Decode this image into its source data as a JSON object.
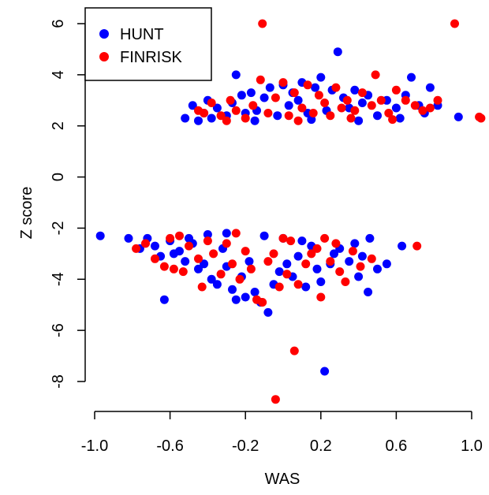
{
  "chart_data": {
    "type": "scatter",
    "title": "",
    "xlabel": "WAS",
    "ylabel": "Z score",
    "xlim": [
      -1.0,
      1.0
    ],
    "ylim": [
      -9,
      6.5
    ],
    "x_ticks": [
      -1.0,
      -0.6,
      -0.2,
      0.2,
      0.6,
      1.0
    ],
    "x_tick_labels": [
      "-1.0",
      "-0.6",
      "-0.2",
      "0.2",
      "0.6",
      "1.0"
    ],
    "y_ticks": [
      -8,
      -6,
      -4,
      -2,
      0,
      2,
      4,
      6
    ],
    "y_tick_labels": [
      "-8",
      "-6",
      "-4",
      "-2",
      "0",
      "2",
      "4",
      "6"
    ],
    "legend_position": "top-left",
    "grid": false,
    "series": [
      {
        "name": "HUNT",
        "color": "#0000ff",
        "points": [
          [
            -0.97,
            -2.3
          ],
          [
            -0.82,
            -2.4
          ],
          [
            -0.76,
            -2.8
          ],
          [
            -0.72,
            -2.4
          ],
          [
            -0.68,
            -2.7
          ],
          [
            -0.63,
            -4.8
          ],
          [
            -0.6,
            -2.5
          ],
          [
            -0.58,
            -3.0
          ],
          [
            -0.55,
            -2.9
          ],
          [
            -0.52,
            -3.3
          ],
          [
            -0.5,
            -2.4
          ],
          [
            -0.48,
            -2.6
          ],
          [
            -0.45,
            -3.6
          ],
          [
            -0.42,
            -3.4
          ],
          [
            -0.38,
            -4.0
          ],
          [
            -0.35,
            -4.2
          ],
          [
            -0.32,
            -2.8
          ],
          [
            -0.3,
            -3.5
          ],
          [
            -0.27,
            -4.4
          ],
          [
            -0.25,
            -4.8
          ],
          [
            -0.22,
            -3.9
          ],
          [
            -0.2,
            -4.7
          ],
          [
            -0.18,
            -3.3
          ],
          [
            -0.15,
            -4.5
          ],
          [
            -0.12,
            -4.9
          ],
          [
            -0.08,
            -5.3
          ],
          [
            -0.05,
            -4.2
          ],
          [
            -0.02,
            -3.7
          ],
          [
            0.02,
            -3.4
          ],
          [
            0.05,
            -3.9
          ],
          [
            0.08,
            -3.1
          ],
          [
            0.12,
            -4.3
          ],
          [
            0.15,
            -2.7
          ],
          [
            0.18,
            -3.6
          ],
          [
            0.2,
            -4.1
          ],
          [
            0.22,
            -7.6
          ],
          [
            0.25,
            -3.4
          ],
          [
            0.3,
            -2.8
          ],
          [
            0.35,
            -3.3
          ],
          [
            0.4,
            -3.9
          ],
          [
            0.42,
            -3.1
          ],
          [
            0.45,
            -4.5
          ],
          [
            0.5,
            -3.6
          ],
          [
            0.55,
            -3.4
          ],
          [
            0.63,
            -2.7
          ],
          [
            0.46,
            -2.4
          ],
          [
            -0.4,
            -2.25
          ],
          [
            -0.1,
            -2.3
          ],
          [
            0.1,
            -2.5
          ],
          [
            0.38,
            -2.6
          ],
          [
            -0.65,
            -3.1
          ],
          [
            -0.3,
            -2.2
          ],
          [
            0.0,
            -2.4
          ],
          [
            0.27,
            -3.0
          ],
          [
            -0.52,
            2.3
          ],
          [
            -0.48,
            2.8
          ],
          [
            -0.42,
            2.5
          ],
          [
            -0.4,
            3.0
          ],
          [
            -0.38,
            2.3
          ],
          [
            -0.35,
            2.7
          ],
          [
            -0.3,
            2.4
          ],
          [
            -0.27,
            2.9
          ],
          [
            -0.25,
            4.0
          ],
          [
            -0.22,
            3.2
          ],
          [
            -0.2,
            2.5
          ],
          [
            -0.17,
            3.3
          ],
          [
            -0.14,
            2.6
          ],
          [
            -0.1,
            3.1
          ],
          [
            -0.07,
            3.5
          ],
          [
            -0.03,
            2.4
          ],
          [
            0.0,
            3.6
          ],
          [
            0.03,
            2.8
          ],
          [
            0.05,
            3.3
          ],
          [
            0.08,
            3.0
          ],
          [
            0.1,
            3.7
          ],
          [
            0.13,
            2.5
          ],
          [
            0.17,
            3.5
          ],
          [
            0.2,
            3.9
          ],
          [
            0.23,
            2.6
          ],
          [
            0.26,
            3.4
          ],
          [
            0.29,
            4.9
          ],
          [
            0.32,
            3.1
          ],
          [
            0.35,
            2.7
          ],
          [
            0.38,
            3.4
          ],
          [
            0.42,
            2.9
          ],
          [
            0.45,
            3.2
          ],
          [
            0.5,
            2.4
          ],
          [
            0.55,
            3.0
          ],
          [
            0.6,
            2.7
          ],
          [
            0.65,
            3.2
          ],
          [
            0.68,
            3.9
          ],
          [
            0.72,
            2.8
          ],
          [
            0.75,
            2.5
          ],
          [
            0.78,
            3.5
          ],
          [
            0.82,
            2.8
          ],
          [
            0.93,
            2.35
          ],
          [
            -0.45,
            2.2
          ],
          [
            -0.15,
            2.2
          ],
          [
            0.15,
            2.25
          ],
          [
            0.4,
            2.2
          ],
          [
            0.62,
            2.3
          ]
        ]
      },
      {
        "name": "FINRISK",
        "color": "#ff0000",
        "points": [
          [
            -0.78,
            -2.8
          ],
          [
            -0.73,
            -2.6
          ],
          [
            -0.68,
            -3.2
          ],
          [
            -0.63,
            -3.5
          ],
          [
            -0.6,
            -2.4
          ],
          [
            -0.58,
            -3.6
          ],
          [
            -0.53,
            -3.7
          ],
          [
            -0.5,
            -2.7
          ],
          [
            -0.45,
            -3.2
          ],
          [
            -0.43,
            -4.3
          ],
          [
            -0.4,
            -2.5
          ],
          [
            -0.37,
            -3.0
          ],
          [
            -0.33,
            -3.8
          ],
          [
            -0.3,
            -2.6
          ],
          [
            -0.27,
            -3.4
          ],
          [
            -0.23,
            -4.0
          ],
          [
            -0.2,
            -2.9
          ],
          [
            -0.17,
            -3.6
          ],
          [
            -0.14,
            -4.8
          ],
          [
            -0.11,
            -4.9
          ],
          [
            -0.08,
            -3.3
          ],
          [
            -0.04,
            -8.7
          ],
          [
            -0.02,
            -4.3
          ],
          [
            0.02,
            -3.8
          ],
          [
            0.04,
            -2.5
          ],
          [
            0.06,
            -6.8
          ],
          [
            0.08,
            -4.2
          ],
          [
            0.12,
            -3.4
          ],
          [
            0.15,
            -3.0
          ],
          [
            0.18,
            -2.8
          ],
          [
            0.2,
            -4.7
          ],
          [
            0.25,
            -3.3
          ],
          [
            0.28,
            -2.6
          ],
          [
            0.33,
            -4.1
          ],
          [
            0.37,
            -2.9
          ],
          [
            0.41,
            -3.5
          ],
          [
            0.47,
            -3.2
          ],
          [
            0.71,
            -2.7
          ],
          [
            -0.25,
            -2.2
          ],
          [
            0.0,
            -2.4
          ],
          [
            0.3,
            -3.7
          ],
          [
            -0.55,
            -2.3
          ],
          [
            -0.05,
            -3.0
          ],
          [
            0.22,
            -2.4
          ],
          [
            -0.45,
            2.6
          ],
          [
            -0.42,
            2.5
          ],
          [
            -0.38,
            2.9
          ],
          [
            -0.33,
            2.4
          ],
          [
            -0.28,
            3.0
          ],
          [
            -0.25,
            2.6
          ],
          [
            -0.2,
            2.3
          ],
          [
            -0.16,
            2.8
          ],
          [
            -0.12,
            3.8
          ],
          [
            -0.11,
            6.0
          ],
          [
            -0.08,
            2.5
          ],
          [
            -0.04,
            3.1
          ],
          [
            0.0,
            3.7
          ],
          [
            0.03,
            2.4
          ],
          [
            0.06,
            3.3
          ],
          [
            0.1,
            2.7
          ],
          [
            0.13,
            3.6
          ],
          [
            0.16,
            2.5
          ],
          [
            0.19,
            3.2
          ],
          [
            0.22,
            2.9
          ],
          [
            0.25,
            2.4
          ],
          [
            0.28,
            3.5
          ],
          [
            0.31,
            2.7
          ],
          [
            0.34,
            3.0
          ],
          [
            0.38,
            2.6
          ],
          [
            0.42,
            3.3
          ],
          [
            0.47,
            2.8
          ],
          [
            0.49,
            4.0
          ],
          [
            0.52,
            3.0
          ],
          [
            0.56,
            2.5
          ],
          [
            0.6,
            3.4
          ],
          [
            0.65,
            3.0
          ],
          [
            0.7,
            2.8
          ],
          [
            0.74,
            2.6
          ],
          [
            0.78,
            2.7
          ],
          [
            0.82,
            3.0
          ],
          [
            0.91,
            6.0
          ],
          [
            1.04,
            2.35
          ],
          [
            1.05,
            2.3
          ],
          [
            -0.3,
            2.2
          ],
          [
            0.08,
            2.2
          ],
          [
            0.36,
            2.3
          ],
          [
            0.58,
            2.25
          ]
        ]
      }
    ]
  }
}
